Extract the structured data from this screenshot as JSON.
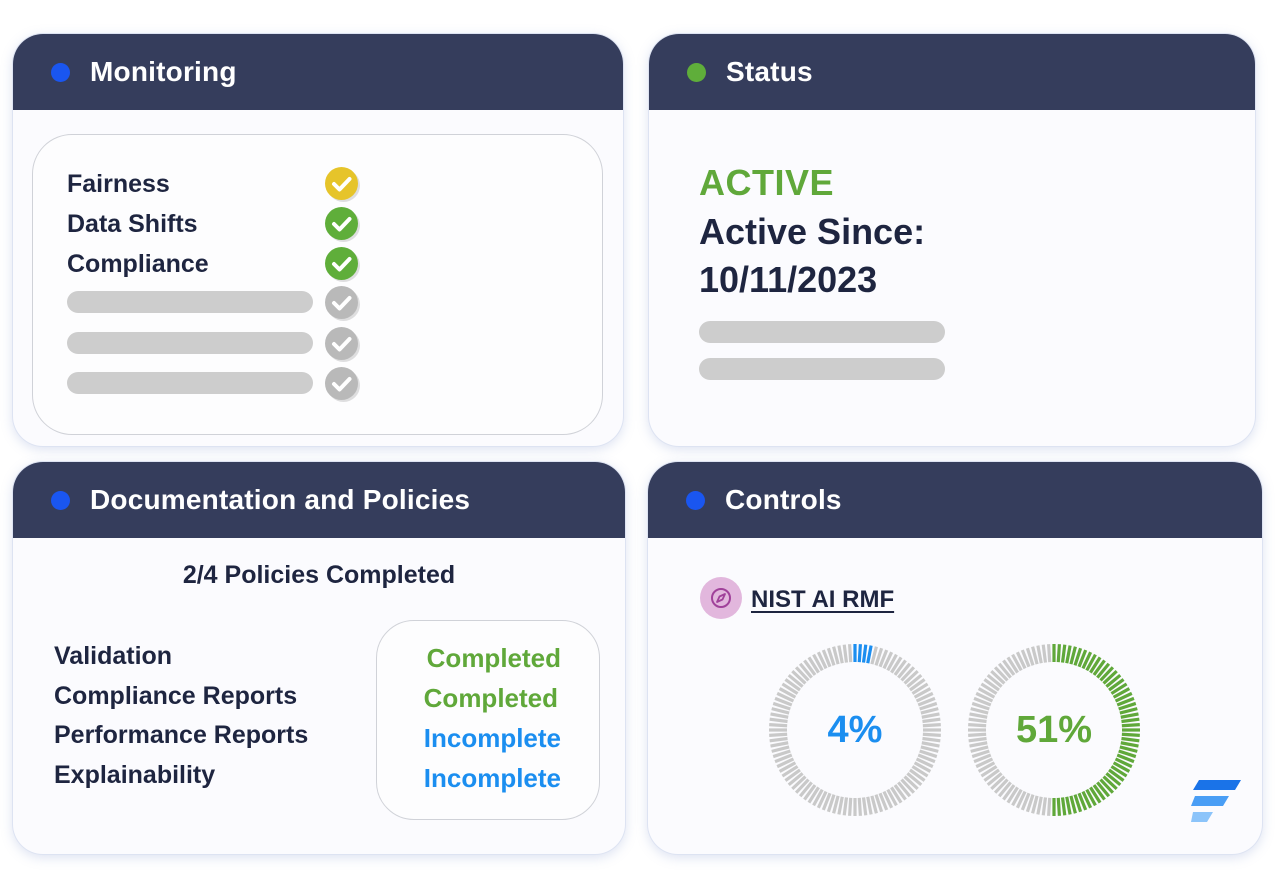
{
  "colors": {
    "header_bg": "#353d5c",
    "dot_blue": "#1a56f0",
    "dot_green": "#5fae3a",
    "text_dark": "#1e2540",
    "green": "#60a83a",
    "blue": "#1b8ef0",
    "check_yellow": "#e6c42a",
    "check_green": "#5fae3a",
    "check_gray": "#b9b9b9",
    "placeholder": "#cdcdcd"
  },
  "monitoring": {
    "title": "Monitoring",
    "dot_color": "#1a56f0",
    "items": [
      {
        "label": "Fairness",
        "check": "check-circle-icon",
        "color": "#e6c42a"
      },
      {
        "label": "Data Shifts",
        "check": "check-circle-icon",
        "color": "#5fae3a"
      },
      {
        "label": "Compliance",
        "check": "check-circle-icon",
        "color": "#5fae3a"
      },
      {
        "label": null,
        "check": "check-circle-icon",
        "color": "#b9b9b9"
      },
      {
        "label": null,
        "check": "check-circle-icon",
        "color": "#b9b9b9"
      },
      {
        "label": null,
        "check": "check-circle-icon",
        "color": "#b9b9b9"
      }
    ]
  },
  "status": {
    "title": "Status",
    "dot_color": "#5fae3a",
    "state": "ACTIVE",
    "since_label": "Active Since:",
    "since_date": "10/11/2023"
  },
  "documentation": {
    "title": "Documentation and Policies",
    "dot_color": "#1a56f0",
    "summary": "2/4 Policies Completed",
    "policies": [
      {
        "name": "Validation",
        "status": "Completed",
        "status_color": "#60a83a"
      },
      {
        "name": "Compliance Reports",
        "status": "Completed",
        "status_color": "#60a83a"
      },
      {
        "name": "Performance Reports",
        "status": "Incomplete",
        "status_color": "#1b8ef0"
      },
      {
        "name": "Explainability",
        "status": "Incomplete",
        "status_color": "#1b8ef0"
      }
    ]
  },
  "controls": {
    "title": "Controls",
    "dot_color": "#1a56f0",
    "framework_icon": "compass-icon",
    "framework": "NIST AI RMF",
    "gauges": [
      {
        "value": 4,
        "label": "4%",
        "color": "#1b8ef0"
      },
      {
        "value": 51,
        "label": "51%",
        "color": "#60a83a"
      }
    ],
    "logo_icon": "brand-logo-icon"
  }
}
